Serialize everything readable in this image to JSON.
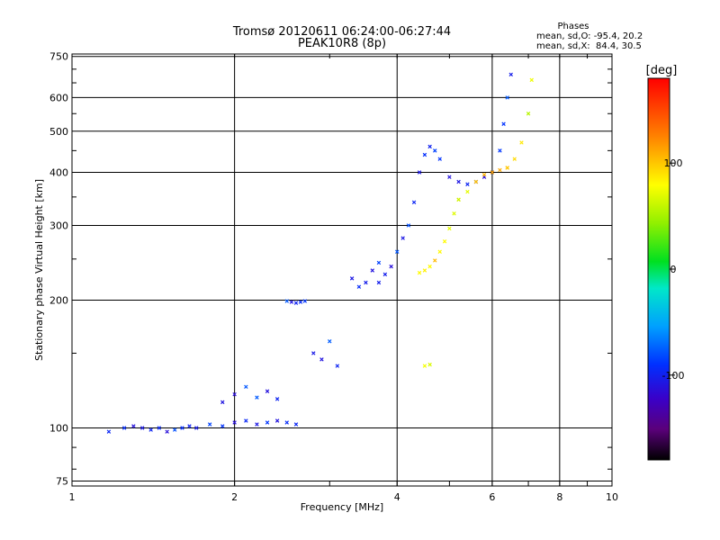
{
  "chart_data": {
    "type": "scatter",
    "title": "Tromsø 20120611 06:24:00-06:27:44",
    "subtitle": "PEAK10R8 (8p)",
    "xlabel": "Frequency [MHz]",
    "ylabel": "Stationary phase Virtual Height [km]",
    "xscale": "log",
    "yscale": "log",
    "xlim": [
      1,
      10
    ],
    "ylim": [
      73,
      760
    ],
    "grid": true,
    "x_ticks": [
      1,
      2,
      4,
      6,
      8,
      10
    ],
    "x_tick_labels": [
      "1",
      "2",
      "4",
      "6",
      "8",
      "10"
    ],
    "y_ticks": [
      75,
      100,
      200,
      300,
      400,
      500,
      600,
      750
    ],
    "y_tick_labels": [
      "75",
      "100",
      "200",
      "300",
      "400",
      "500",
      "600",
      "750"
    ],
    "phase_stats": {
      "heading": "Phases",
      "line_o": "mean, sd,O: -95.4, 20.2",
      "line_x": "mean, sd,X:  84.4, 30.5"
    },
    "colorbar": {
      "unit_label": "[deg]",
      "range": [
        -180,
        180
      ],
      "ticks": [
        100,
        0,
        -100
      ],
      "tick_labels": [
        "100",
        "0",
        "-100"
      ]
    },
    "series": [
      {
        "mode": "O",
        "phase_mean": -95.4,
        "phase_sd": 20.2,
        "traces": [
          {
            "segment": "E-layer",
            "x": [
              1.17,
              1.25,
              1.3,
              1.35,
              1.4,
              1.45,
              1.5,
              1.55,
              1.6,
              1.65,
              1.7,
              1.8,
              1.9,
              2.0,
              2.1,
              2.2,
              2.3,
              2.4,
              2.5,
              2.6
            ],
            "y": [
              98,
              100,
              101,
              100,
              99,
              100,
              98,
              99,
              100,
              101,
              100,
              102,
              101,
              103,
              104,
              102,
              103,
              104,
              103,
              102
            ]
          },
          {
            "segment": "spread-1",
            "x": [
              1.9,
              2.0,
              2.1,
              2.2,
              2.3,
              2.4
            ],
            "y": [
              115,
              120,
              125,
              118,
              122,
              117
            ]
          },
          {
            "segment": "spread-2",
            "x": [
              2.5,
              2.55,
              2.6,
              2.65,
              2.7
            ],
            "y": [
              199,
              198,
              197,
              198,
              199
            ]
          },
          {
            "segment": "spread-3",
            "x": [
              2.8,
              2.9,
              3.0,
              3.1
            ],
            "y": [
              150,
              145,
              160,
              140
            ]
          },
          {
            "segment": "F-patch",
            "x": [
              3.3,
              3.4,
              3.5,
              3.6,
              3.7
            ],
            "y": [
              225,
              215,
              220,
              235,
              245
            ]
          },
          {
            "segment": "F-trace",
            "x": [
              3.7,
              3.8,
              3.9,
              4.0,
              4.1,
              4.2,
              4.3,
              4.4,
              4.5,
              4.6,
              4.7,
              4.8,
              5.0,
              5.2,
              5.4,
              5.6,
              5.8
            ],
            "y": [
              220,
              230,
              240,
              260,
              280,
              300,
              340,
              400,
              440,
              460,
              450,
              430,
              390,
              380,
              375,
              380,
              390
            ]
          },
          {
            "segment": "F2-cusp",
            "x": [
              6.0,
              6.2,
              6.3,
              6.4,
              6.5
            ],
            "y": [
              400,
              450,
              520,
              600,
              680
            ]
          }
        ]
      },
      {
        "mode": "X",
        "phase_mean": 84.4,
        "phase_sd": 30.5,
        "traces": [
          {
            "segment": "low",
            "x": [
              4.4,
              4.5,
              4.6,
              4.7,
              4.8,
              4.9,
              5.0,
              5.1,
              5.2
            ],
            "y": [
              232,
              235,
              240,
              248,
              260,
              275,
              295,
              320,
              345
            ]
          },
          {
            "segment": "mid",
            "x": [
              5.2,
              5.4,
              5.6,
              5.8,
              6.0,
              6.2,
              6.4
            ],
            "y": [
              345,
              360,
              380,
              395,
              400,
              405,
              410
            ]
          },
          {
            "segment": "high",
            "x": [
              6.4,
              6.6,
              6.8,
              7.0,
              7.1
            ],
            "y": [
              410,
              430,
              470,
              550,
              660
            ]
          },
          {
            "segment": "sparse",
            "x": [
              4.5,
              4.6
            ],
            "y": [
              140,
              141
            ]
          }
        ]
      }
    ]
  }
}
